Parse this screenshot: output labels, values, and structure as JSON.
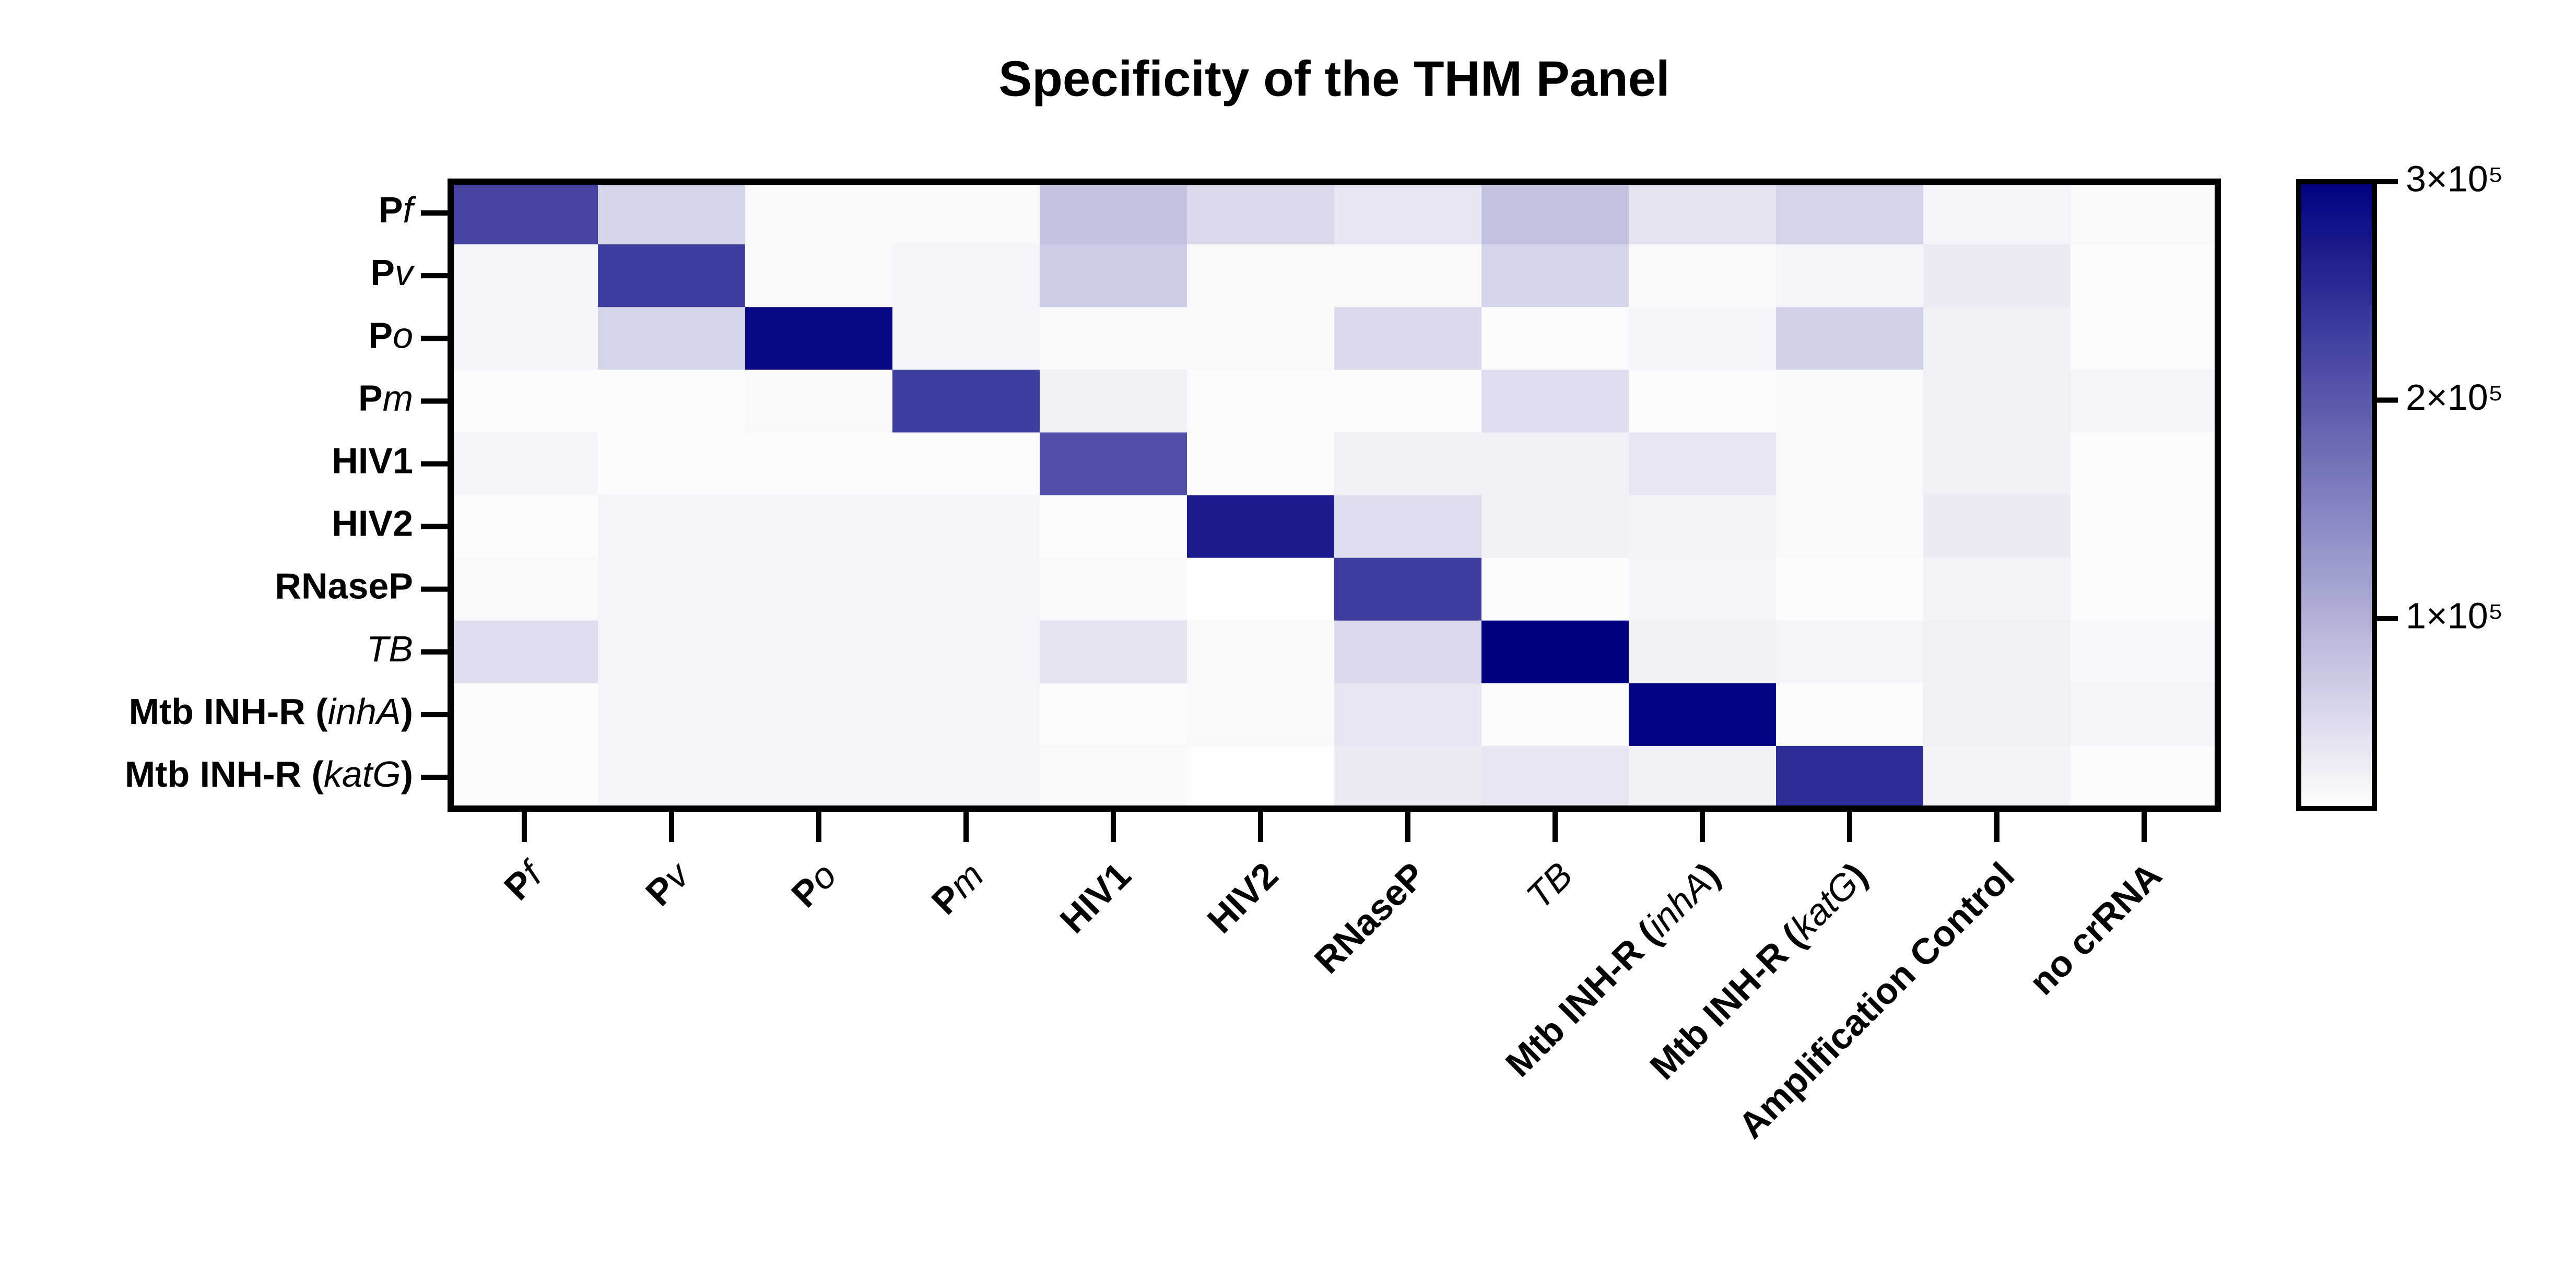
{
  "chart_data": {
    "type": "heatmap",
    "title": "Specificity of the THM Panel",
    "x_categories": [
      [
        "P",
        {
          "text": "f",
          "italic": true
        }
      ],
      [
        "P",
        {
          "text": "v",
          "italic": true
        }
      ],
      [
        "P",
        {
          "text": "o",
          "italic": true
        }
      ],
      [
        "P",
        {
          "text": "m",
          "italic": true
        }
      ],
      [
        "HIV1"
      ],
      [
        "HIV2"
      ],
      [
        "RNaseP"
      ],
      [
        {
          "text": "TB",
          "italic": true
        }
      ],
      [
        "Mtb INH-R (",
        {
          "text": "inhA",
          "italic": true
        },
        ")"
      ],
      [
        "Mtb INH-R (",
        {
          "text": "katG",
          "italic": true
        },
        ")"
      ],
      [
        "Amplification Control"
      ],
      [
        "no crRNA"
      ]
    ],
    "y_categories": [
      [
        "P",
        {
          "text": "f",
          "italic": true
        }
      ],
      [
        "P",
        {
          "text": "v",
          "italic": true
        }
      ],
      [
        "P",
        {
          "text": "o",
          "italic": true
        }
      ],
      [
        "P",
        {
          "text": "m",
          "italic": true
        }
      ],
      [
        "HIV1"
      ],
      [
        "HIV2"
      ],
      [
        "RNaseP"
      ],
      [
        {
          "text": "TB",
          "italic": true
        }
      ],
      [
        "Mtb INH-R (",
        {
          "text": "inhA",
          "italic": true
        },
        ")"
      ],
      [
        "Mtb INH-R (",
        {
          "text": "katG",
          "italic": true
        },
        ")"
      ]
    ],
    "values": [
      [
        220000,
        60000,
        20000,
        20000,
        80000,
        55000,
        40000,
        80000,
        45000,
        60000,
        25000,
        20000
      ],
      [
        25000,
        230000,
        20000,
        25000,
        70000,
        20000,
        20000,
        60000,
        20000,
        25000,
        35000,
        18000
      ],
      [
        25000,
        60000,
        290000,
        25000,
        20000,
        20000,
        55000,
        18000,
        25000,
        65000,
        30000,
        18000
      ],
      [
        16000,
        18000,
        20000,
        230000,
        30000,
        18000,
        18000,
        50000,
        18000,
        20000,
        30000,
        25000
      ],
      [
        25000,
        16000,
        18000,
        18000,
        210000,
        16000,
        30000,
        30000,
        40000,
        20000,
        30000,
        18000
      ],
      [
        18000,
        25000,
        25000,
        25000,
        18000,
        270000,
        50000,
        30000,
        27000,
        20000,
        35000,
        18000
      ],
      [
        20000,
        25000,
        25000,
        25000,
        20000,
        13000,
        230000,
        16000,
        25000,
        16000,
        28000,
        18000
      ],
      [
        50000,
        25000,
        25000,
        25000,
        45000,
        20000,
        55000,
        300000,
        30000,
        25000,
        30000,
        22000
      ],
      [
        18000,
        25000,
        25000,
        25000,
        18000,
        20000,
        40000,
        18000,
        295000,
        16000,
        30000,
        25000
      ],
      [
        18000,
        25000,
        25000,
        25000,
        20000,
        15000,
        35000,
        40000,
        30000,
        250000,
        28000,
        18000
      ]
    ],
    "zlim": [
      13000,
      300000
    ],
    "zticks": [
      {
        "value": 100000,
        "label": "1×10⁵"
      },
      {
        "value": 200000,
        "label": "2×10⁵"
      },
      {
        "value": 300000,
        "label": "3×10⁵"
      }
    ],
    "colors": [
      "#ffffff",
      "#000080"
    ]
  }
}
